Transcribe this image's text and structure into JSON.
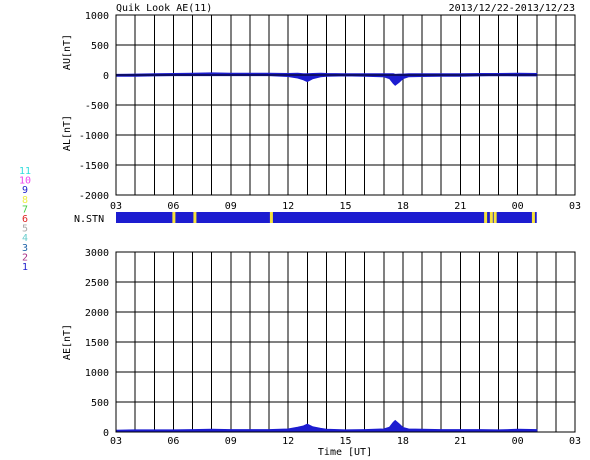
{
  "header": {
    "title": "Quik Look AE(11)",
    "date_range": "2013/12/22-2013/12/23"
  },
  "station_legend": {
    "items": [
      {
        "label": "11",
        "color": "#33dddd"
      },
      {
        "label": "10",
        "color": "#ee44ee"
      },
      {
        "label": "9",
        "color": "#2222cc"
      },
      {
        "label": "8",
        "color": "#eeee44"
      },
      {
        "label": "7",
        "color": "#44cc44"
      },
      {
        "label": "6",
        "color": "#dd2222"
      },
      {
        "label": "5",
        "color": "#aaaaaa"
      },
      {
        "label": "4",
        "color": "#66cccc"
      },
      {
        "label": "3",
        "color": "#2266aa"
      },
      {
        "label": "2",
        "color": "#aa3388"
      },
      {
        "label": "1",
        "color": "#2222cc"
      }
    ]
  },
  "nstn_label": "N.STN",
  "xlabel": "Time [UT]",
  "x_ticks": [
    "03",
    "06",
    "09",
    "12",
    "15",
    "18",
    "21",
    "00",
    "03"
  ],
  "colors": {
    "trace": "#1c1cd0",
    "nstn_fill": "#1c1cd0",
    "nstn_mark": "#f5e23c",
    "grid": "#000000",
    "background": "#ffffff"
  },
  "chart_data": [
    {
      "type": "area",
      "name": "AU/AL",
      "ylabel_top": "AU[nT]",
      "ylabel_bottom": "AL[nT]",
      "ylim": [
        -2000,
        1000
      ],
      "yticks": [
        "1000",
        "500",
        "0",
        "-500",
        "-1000",
        "-1500",
        "-2000"
      ],
      "xlim_hours_UT": [
        3,
        27
      ],
      "grid": true,
      "x_hours_UT": [
        3.0,
        4.0,
        5.0,
        6.0,
        7.0,
        8.0,
        9.0,
        10.0,
        11.0,
        12.0,
        12.5,
        12.8,
        13.0,
        13.3,
        13.7,
        14.0,
        15.0,
        16.0,
        17.0,
        17.3,
        17.5,
        17.6,
        17.8,
        18.0,
        18.3,
        19.0,
        20.0,
        21.0,
        22.0,
        23.0,
        24.0,
        25.0
      ],
      "au": [
        10,
        15,
        20,
        25,
        30,
        35,
        30,
        30,
        30,
        25,
        30,
        20,
        20,
        25,
        30,
        25,
        20,
        20,
        20,
        20,
        20,
        10,
        15,
        15,
        20,
        20,
        20,
        20,
        25,
        25,
        30,
        25
      ],
      "al": [
        -20,
        -20,
        -15,
        -10,
        -10,
        -10,
        -10,
        -10,
        -10,
        -25,
        -50,
        -80,
        -110,
        -60,
        -30,
        -20,
        -15,
        -20,
        -30,
        -60,
        -140,
        -170,
        -120,
        -60,
        -30,
        -25,
        -20,
        -20,
        -15,
        -10,
        -15,
        -15
      ]
    },
    {
      "type": "area",
      "name": "AE",
      "ylabel": "AE[nT]",
      "ylim": [
        0,
        3000
      ],
      "yticks": [
        "3000",
        "2500",
        "2000",
        "1500",
        "1000",
        "500",
        "0"
      ],
      "xlim_hours_UT": [
        3,
        27
      ],
      "grid": true,
      "x_hours_UT": [
        3.0,
        4.0,
        5.0,
        6.0,
        7.0,
        8.0,
        9.0,
        10.0,
        11.0,
        12.0,
        12.5,
        12.8,
        13.0,
        13.3,
        13.7,
        14.0,
        15.0,
        16.0,
        17.0,
        17.3,
        17.5,
        17.6,
        17.8,
        18.0,
        18.3,
        19.0,
        20.0,
        21.0,
        22.0,
        23.0,
        24.0,
        25.0
      ],
      "values": [
        30,
        35,
        35,
        35,
        40,
        45,
        40,
        40,
        40,
        50,
        80,
        100,
        130,
        85,
        60,
        45,
        35,
        40,
        50,
        80,
        160,
        190,
        135,
        75,
        50,
        45,
        40,
        40,
        40,
        35,
        45,
        40
      ]
    }
  ],
  "nstn_segments_hours_UT": {
    "bar": [
      3.0,
      25.0
    ],
    "markers": [
      6.0,
      7.1,
      11.1,
      22.3,
      22.6,
      22.8,
      24.8
    ]
  }
}
